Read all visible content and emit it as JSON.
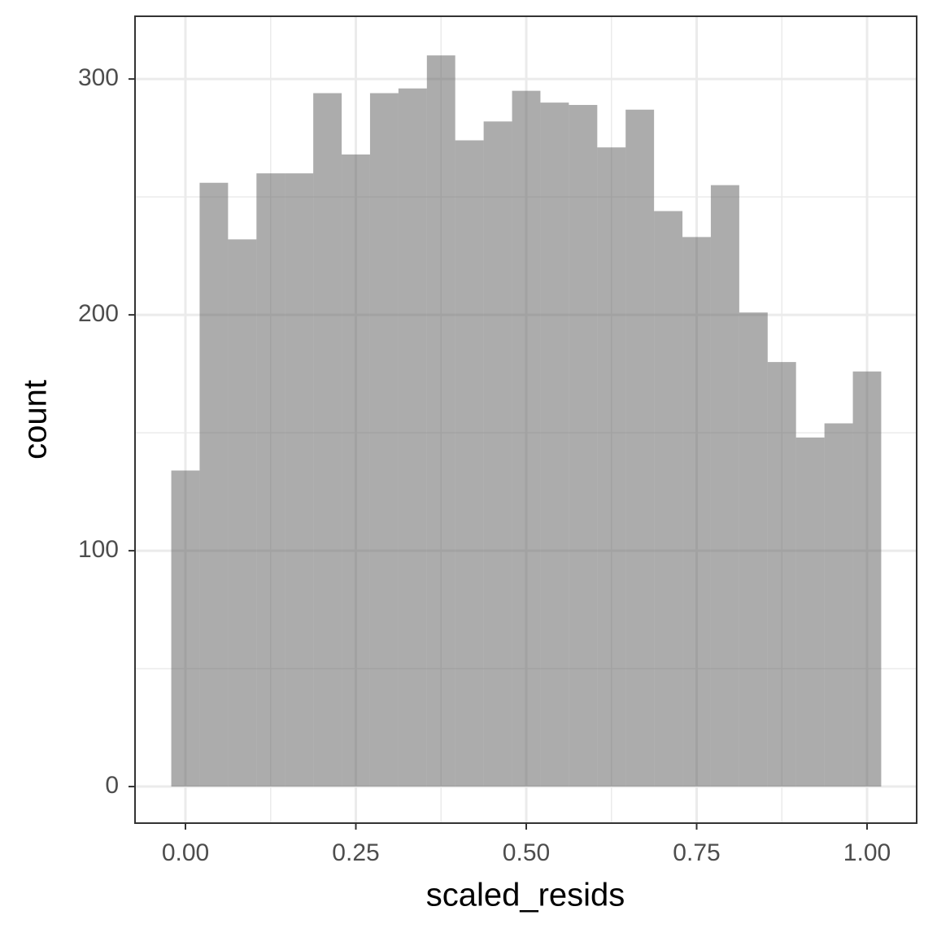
{
  "chart_data": {
    "type": "histogram",
    "xlabel": "scaled_resids",
    "ylabel": "count",
    "bins": [
      -0.0208,
      0.0208,
      0.0625,
      0.1042,
      0.1458,
      0.1875,
      0.2292,
      0.2708,
      0.3125,
      0.3542,
      0.3958,
      0.4375,
      0.4792,
      0.5208,
      0.5625,
      0.6042,
      0.6458,
      0.6875,
      0.7292,
      0.7708,
      0.8125,
      0.8542,
      0.8958,
      0.9375,
      0.9792,
      1.0208
    ],
    "values": [
      134,
      256,
      232,
      260,
      260,
      294,
      268,
      294,
      296,
      310,
      274,
      282,
      295,
      290,
      289,
      271,
      287,
      244,
      233,
      255,
      201,
      180,
      148,
      154,
      176
    ],
    "color": "#595959",
    "alpha": 0.5,
    "xlim": [
      -0.074,
      1.0728
    ],
    "ylim": [
      -15.5,
      326.6
    ],
    "xticks": [
      {
        "value": 0,
        "label": "0.00"
      },
      {
        "value": 0.25,
        "label": "0.25"
      },
      {
        "value": 0.5,
        "label": "0.50"
      },
      {
        "value": 0.75,
        "label": "0.75"
      },
      {
        "value": 1,
        "label": "1.00"
      }
    ],
    "yticks": [
      0,
      100,
      200,
      300
    ],
    "xminor": [
      0.125,
      0.375,
      0.625,
      0.875
    ],
    "yminor": [
      50,
      150,
      250
    ],
    "grid": true
  }
}
